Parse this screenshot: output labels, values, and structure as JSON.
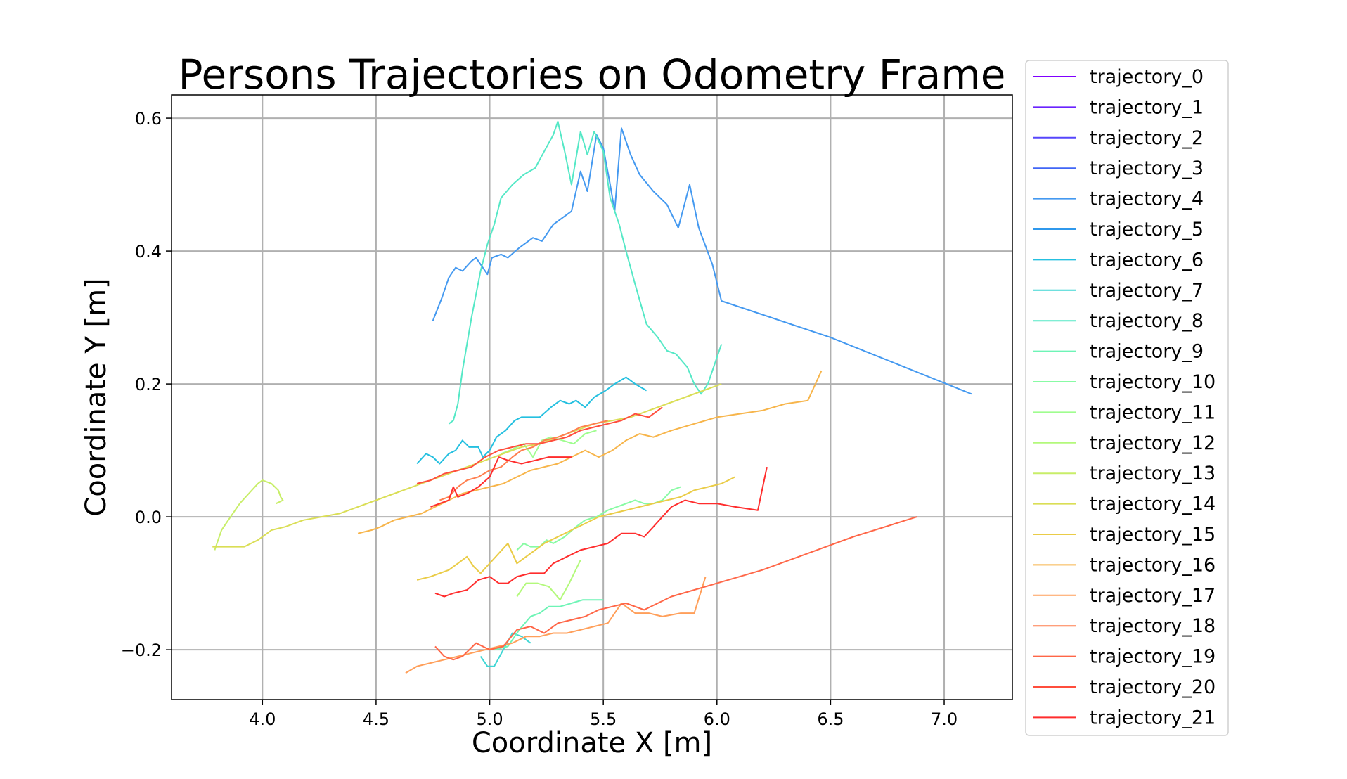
{
  "chart_data": {
    "type": "line",
    "title": "Persons Trajectories on Odometry Frame",
    "xlabel": "Coordinate X [m]",
    "ylabel": "Coordinate Y [m]",
    "xlim": [
      3.6,
      7.3
    ],
    "ylim": [
      -0.275,
      0.635
    ],
    "xticks": [
      4.0,
      4.5,
      5.0,
      5.5,
      6.0,
      6.5,
      7.0
    ],
    "xtick_labels": [
      "4.0",
      "4.5",
      "5.0",
      "5.5",
      "6.0",
      "6.5",
      "7.0"
    ],
    "yticks": [
      0.6,
      0.4,
      0.2,
      0.0,
      -0.2
    ],
    "ytick_labels": [
      "0.6",
      "0.4",
      "0.2",
      "0.0",
      "−0.2"
    ],
    "grid": true,
    "legend_position": "outside-right",
    "series": [
      {
        "name": "trajectory_0",
        "color": "#8000ff",
        "x": [],
        "y": []
      },
      {
        "name": "trajectory_1",
        "color": "#6a23fe",
        "x": [],
        "y": []
      },
      {
        "name": "trajectory_2",
        "color": "#5646fc",
        "x": [],
        "y": []
      },
      {
        "name": "trajectory_3",
        "color": "#4166f6",
        "x": [],
        "y": []
      },
      {
        "name": "trajectory_4",
        "color": "#4499f0",
        "x": [
          4.75,
          4.79,
          4.82,
          4.85,
          4.88,
          4.92,
          4.94,
          4.97,
          4.99,
          5.01,
          5.05,
          5.08,
          5.13,
          5.19,
          5.23,
          5.28,
          5.32,
          5.36,
          5.4,
          5.43,
          5.47,
          5.5,
          5.53,
          5.55,
          5.58,
          5.62,
          5.66,
          5.72,
          5.78,
          5.83,
          5.88,
          5.92,
          5.98,
          6.02,
          6.5,
          7.12
        ],
        "y": [
          0.295,
          0.33,
          0.36,
          0.375,
          0.37,
          0.385,
          0.39,
          0.375,
          0.365,
          0.39,
          0.395,
          0.39,
          0.405,
          0.42,
          0.415,
          0.44,
          0.45,
          0.46,
          0.52,
          0.49,
          0.575,
          0.555,
          0.5,
          0.46,
          0.585,
          0.545,
          0.515,
          0.49,
          0.47,
          0.435,
          0.5,
          0.435,
          0.38,
          0.325,
          0.27,
          0.185
        ]
      },
      {
        "name": "trajectory_5",
        "color": "#2f98ec",
        "x": [],
        "y": []
      },
      {
        "name": "trajectory_6",
        "color": "#25c0e0",
        "x": [
          4.68,
          4.72,
          4.75,
          4.78,
          4.82,
          4.85,
          4.88,
          4.91,
          4.95,
          4.97,
          5.0,
          5.03,
          5.07,
          5.11,
          5.14,
          5.18,
          5.22,
          5.27,
          5.31,
          5.35,
          5.38,
          5.42,
          5.46,
          5.51,
          5.55,
          5.6,
          5.64,
          5.69
        ],
        "y": [
          0.08,
          0.095,
          0.09,
          0.08,
          0.095,
          0.1,
          0.115,
          0.105,
          0.105,
          0.09,
          0.1,
          0.12,
          0.13,
          0.145,
          0.15,
          0.15,
          0.15,
          0.165,
          0.175,
          0.17,
          0.175,
          0.165,
          0.18,
          0.19,
          0.2,
          0.21,
          0.2,
          0.19
        ]
      },
      {
        "name": "trajectory_7",
        "color": "#3fd6d4",
        "x": [
          4.96,
          4.99,
          5.02,
          5.06,
          5.1,
          5.14,
          5.18
        ],
        "y": [
          -0.21,
          -0.225,
          -0.225,
          -0.2,
          -0.175,
          -0.18,
          -0.19
        ]
      },
      {
        "name": "trajectory_8",
        "color": "#55e8c6",
        "x": [
          4.82,
          4.84,
          4.86,
          4.88,
          4.92,
          4.96,
          4.99,
          5.02,
          5.05,
          5.1,
          5.15,
          5.2,
          5.24,
          5.28,
          5.3,
          5.33,
          5.36,
          5.38,
          5.4,
          5.43,
          5.46,
          5.5,
          5.53,
          5.57,
          5.6,
          5.64,
          5.69,
          5.74,
          5.78,
          5.82,
          5.87,
          5.9,
          5.93,
          5.96,
          6.0,
          6.02
        ],
        "y": [
          0.14,
          0.145,
          0.17,
          0.22,
          0.3,
          0.37,
          0.41,
          0.44,
          0.48,
          0.5,
          0.515,
          0.525,
          0.55,
          0.575,
          0.595,
          0.55,
          0.5,
          0.54,
          0.58,
          0.545,
          0.58,
          0.55,
          0.48,
          0.44,
          0.4,
          0.35,
          0.29,
          0.27,
          0.25,
          0.245,
          0.225,
          0.2,
          0.185,
          0.2,
          0.24,
          0.26
        ]
      },
      {
        "name": "trajectory_9",
        "color": "#6ef4b6",
        "x": [
          5.02,
          5.08,
          5.13,
          5.18,
          5.22,
          5.26,
          5.31,
          5.36,
          5.41,
          5.46,
          5.5
        ],
        "y": [
          -0.2,
          -0.195,
          -0.17,
          -0.15,
          -0.145,
          -0.135,
          -0.135,
          -0.13,
          -0.125,
          -0.125,
          -0.125
        ]
      },
      {
        "name": "trajectory_10",
        "color": "#88fba4",
        "x": [
          5.12,
          5.15,
          5.18,
          5.22,
          5.25,
          5.28,
          5.33,
          5.38,
          5.42,
          5.47,
          5.52,
          5.56,
          5.6,
          5.64,
          5.68,
          5.72,
          5.76,
          5.8,
          5.84
        ],
        "y": [
          -0.05,
          -0.04,
          -0.045,
          -0.045,
          -0.035,
          -0.04,
          -0.03,
          -0.015,
          -0.005,
          0.0,
          0.01,
          0.015,
          0.02,
          0.025,
          0.02,
          0.02,
          0.025,
          0.04,
          0.045
        ]
      },
      {
        "name": "trajectory_11",
        "color": "#9ffd8f",
        "x": [
          5.05,
          5.09,
          5.12,
          5.15,
          5.19,
          5.23,
          5.27,
          5.32,
          5.37,
          5.42,
          5.47
        ],
        "y": [
          0.095,
          0.1,
          0.105,
          0.11,
          0.09,
          0.115,
          0.12,
          0.115,
          0.11,
          0.125,
          0.13
        ]
      },
      {
        "name": "trajectory_12",
        "color": "#b3f97b",
        "x": [
          5.12,
          5.16,
          5.21,
          5.26,
          5.31,
          5.35,
          5.4
        ],
        "y": [
          -0.12,
          -0.1,
          -0.1,
          -0.105,
          -0.125,
          -0.1,
          -0.065
        ]
      },
      {
        "name": "trajectory_13",
        "color": "#c8ee68",
        "x": [
          3.79,
          3.8,
          3.82,
          3.86,
          3.9,
          3.94,
          3.98,
          4.0,
          4.04,
          4.07,
          4.08,
          4.09,
          4.06
        ],
        "y": [
          -0.05,
          -0.04,
          -0.02,
          0.0,
          0.02,
          0.035,
          0.05,
          0.055,
          0.05,
          0.04,
          0.03,
          0.025,
          0.02
        ]
      },
      {
        "name": "trajectory_14",
        "color": "#dade55",
        "x": [
          3.78,
          3.8,
          3.86,
          3.92,
          3.98,
          4.04,
          4.1,
          4.18,
          4.26,
          4.34,
          4.42,
          4.5,
          4.58,
          4.66,
          4.74,
          4.82,
          4.9,
          4.98,
          5.06,
          5.14,
          5.22,
          5.3,
          5.38,
          5.46,
          5.54,
          5.62,
          5.7,
          5.78,
          5.86,
          5.94,
          6.02
        ],
        "y": [
          -0.045,
          -0.045,
          -0.045,
          -0.045,
          -0.035,
          -0.02,
          -0.015,
          -0.005,
          0.0,
          0.005,
          0.015,
          0.025,
          0.035,
          0.045,
          0.055,
          0.065,
          0.075,
          0.085,
          0.095,
          0.105,
          0.11,
          0.12,
          0.13,
          0.14,
          0.145,
          0.15,
          0.16,
          0.17,
          0.18,
          0.19,
          0.2
        ]
      },
      {
        "name": "trajectory_15",
        "color": "#eacc47",
        "x": [
          4.68,
          4.74,
          4.78,
          4.82,
          4.86,
          4.9,
          4.93,
          4.96,
          5.0,
          5.04,
          5.08,
          5.12,
          5.16,
          5.2,
          5.24,
          5.3,
          5.36,
          5.42,
          5.48,
          5.54,
          5.6,
          5.66,
          5.72,
          5.78,
          5.84,
          5.9,
          5.96,
          6.02,
          6.08
        ],
        "y": [
          -0.095,
          -0.09,
          -0.085,
          -0.08,
          -0.07,
          -0.06,
          -0.075,
          -0.085,
          -0.07,
          -0.055,
          -0.04,
          -0.07,
          -0.06,
          -0.05,
          -0.04,
          -0.03,
          -0.02,
          -0.01,
          0.0,
          0.005,
          0.01,
          0.015,
          0.02,
          0.025,
          0.03,
          0.04,
          0.045,
          0.05,
          0.06
        ]
      },
      {
        "name": "trajectory_16",
        "color": "#f7b54b",
        "x": [
          4.42,
          4.48,
          4.52,
          4.58,
          4.64,
          4.7,
          4.76,
          4.82,
          4.88,
          4.94,
          5.0,
          5.06,
          5.12,
          5.18,
          5.24,
          5.3,
          5.36,
          5.42,
          5.48,
          5.54,
          5.6,
          5.66,
          5.72,
          5.8,
          5.9,
          6.0,
          6.1,
          6.2,
          6.3,
          6.4,
          6.46
        ],
        "y": [
          -0.025,
          -0.02,
          -0.015,
          -0.005,
          0.0,
          0.005,
          0.015,
          0.025,
          0.035,
          0.04,
          0.045,
          0.05,
          0.06,
          0.07,
          0.075,
          0.08,
          0.09,
          0.1,
          0.09,
          0.1,
          0.115,
          0.125,
          0.12,
          0.13,
          0.14,
          0.15,
          0.155,
          0.16,
          0.17,
          0.175,
          0.22
        ]
      },
      {
        "name": "trajectory_17",
        "color": "#ff9f5a",
        "x": [
          4.63,
          4.68,
          4.74,
          4.8,
          4.86,
          4.92,
          4.98,
          5.04,
          5.1,
          5.16,
          5.22,
          5.28,
          5.34,
          5.4,
          5.46,
          5.52,
          5.58,
          5.64,
          5.7,
          5.76,
          5.84,
          5.9,
          5.95
        ],
        "y": [
          -0.235,
          -0.225,
          -0.22,
          -0.215,
          -0.21,
          -0.205,
          -0.2,
          -0.195,
          -0.19,
          -0.18,
          -0.18,
          -0.175,
          -0.175,
          -0.17,
          -0.165,
          -0.16,
          -0.13,
          -0.145,
          -0.145,
          -0.15,
          -0.145,
          -0.145,
          -0.09
        ]
      },
      {
        "name": "trajectory_18",
        "color": "#ff7f4f",
        "x": [
          4.78,
          4.82,
          4.86,
          4.9,
          4.95,
          5.0,
          5.05,
          5.1,
          5.14,
          5.19,
          5.24,
          5.3,
          5.34,
          5.4,
          5.46,
          5.52
        ],
        "y": [
          0.025,
          0.03,
          0.045,
          0.055,
          0.06,
          0.07,
          0.075,
          0.09,
          0.1,
          0.105,
          0.115,
          0.12,
          0.125,
          0.135,
          0.14,
          0.145
        ]
      },
      {
        "name": "trajectory_19",
        "color": "#ff6647",
        "x": [
          4.76,
          4.8,
          4.84,
          4.88,
          4.94,
          5.0,
          5.06,
          5.12,
          5.18,
          5.24,
          5.3,
          5.36,
          5.42,
          5.48,
          5.54,
          5.6,
          5.68,
          5.8,
          6.0,
          6.2,
          6.4,
          6.6,
          6.88
        ],
        "y": [
          -0.195,
          -0.21,
          -0.215,
          -0.21,
          -0.19,
          -0.2,
          -0.195,
          -0.17,
          -0.165,
          -0.175,
          -0.16,
          -0.155,
          -0.15,
          -0.14,
          -0.135,
          -0.13,
          -0.14,
          -0.12,
          -0.1,
          -0.08,
          -0.055,
          -0.03,
          0.0
        ]
      },
      {
        "name": "trajectory_20",
        "color": "#ff4d3c",
        "x": [
          4.68,
          4.74,
          4.8,
          4.86,
          4.92,
          4.98,
          5.04,
          5.1,
          5.16,
          5.22,
          5.28,
          5.34,
          5.4,
          5.46,
          5.52,
          5.58,
          5.64,
          5.7,
          5.76
        ],
        "y": [
          0.05,
          0.055,
          0.065,
          0.07,
          0.075,
          0.09,
          0.1,
          0.105,
          0.11,
          0.11,
          0.115,
          0.12,
          0.13,
          0.135,
          0.14,
          0.145,
          0.155,
          0.15,
          0.165
        ]
      },
      {
        "name": "trajectory_21",
        "color": "#ff2d2d",
        "x": [
          4.76,
          4.8,
          4.84,
          4.9,
          4.95,
          5.0,
          5.04,
          5.08,
          5.12,
          5.18,
          5.24,
          5.28,
          5.34,
          5.4,
          5.46,
          5.52,
          5.58,
          5.64,
          5.68,
          5.72,
          5.76,
          5.8,
          5.86,
          5.92,
          6.0,
          6.08,
          6.18,
          6.22
        ],
        "y": [
          -0.115,
          -0.12,
          -0.115,
          -0.11,
          -0.095,
          -0.09,
          -0.1,
          -0.1,
          -0.09,
          -0.085,
          -0.085,
          -0.07,
          -0.06,
          -0.05,
          -0.045,
          -0.04,
          -0.025,
          -0.025,
          -0.03,
          -0.015,
          0.0,
          0.015,
          0.025,
          0.02,
          0.02,
          0.015,
          0.01,
          0.075
        ]
      }
    ],
    "extra_segments": [
      {
        "color": "#ff2d2d",
        "x": [
          4.74,
          4.78,
          4.82,
          4.84,
          4.86,
          4.9,
          4.95,
          5.0,
          5.04,
          5.08,
          5.14,
          5.2,
          5.26,
          5.32,
          5.36
        ],
        "y": [
          0.015,
          0.02,
          0.025,
          0.045,
          0.03,
          0.035,
          0.045,
          0.06,
          0.09,
          0.085,
          0.08,
          0.085,
          0.09,
          0.09,
          0.09
        ]
      }
    ]
  }
}
